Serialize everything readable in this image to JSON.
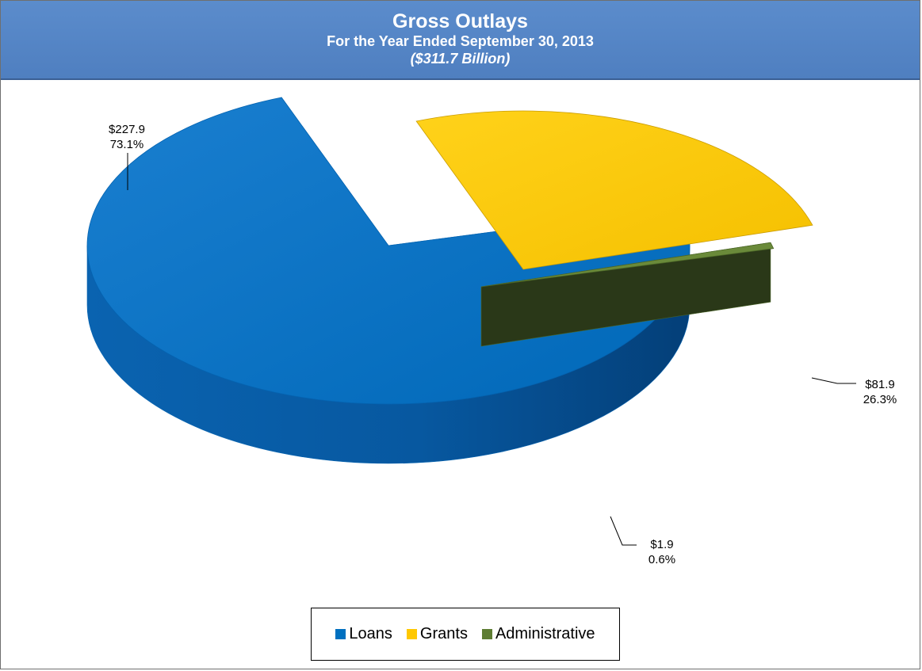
{
  "header": {
    "title": "Gross Outlays",
    "subtitle": "For the Year Ended September 30, 2013",
    "total": "($311.7 Billion)"
  },
  "chart_data": {
    "type": "pie",
    "title": "Gross Outlays",
    "subtitle": "For the Year Ended September 30, 2013",
    "total_label": "($311.7 Billion)",
    "exploded": true,
    "three_d": true,
    "legend_position": "bottom",
    "slices": [
      {
        "name": "Loans",
        "value": 227.9,
        "percent": 73.1,
        "value_label": "$227.9",
        "percent_label": "73.1%",
        "color": "#0070c0"
      },
      {
        "name": "Grants",
        "value": 81.9,
        "percent": 26.3,
        "value_label": "$81.9",
        "percent_label": "26.3%",
        "color": "#ffc800"
      },
      {
        "name": "Administrative",
        "value": 1.9,
        "percent": 0.6,
        "value_label": "$1.9",
        "percent_label": "0.6%",
        "color": "#5e7d33"
      }
    ]
  },
  "legend": {
    "items": [
      {
        "label": "Loans",
        "color": "#0070c0"
      },
      {
        "label": "Grants",
        "color": "#ffc800"
      },
      {
        "label": "Administrative",
        "color": "#5e7d33"
      }
    ]
  }
}
